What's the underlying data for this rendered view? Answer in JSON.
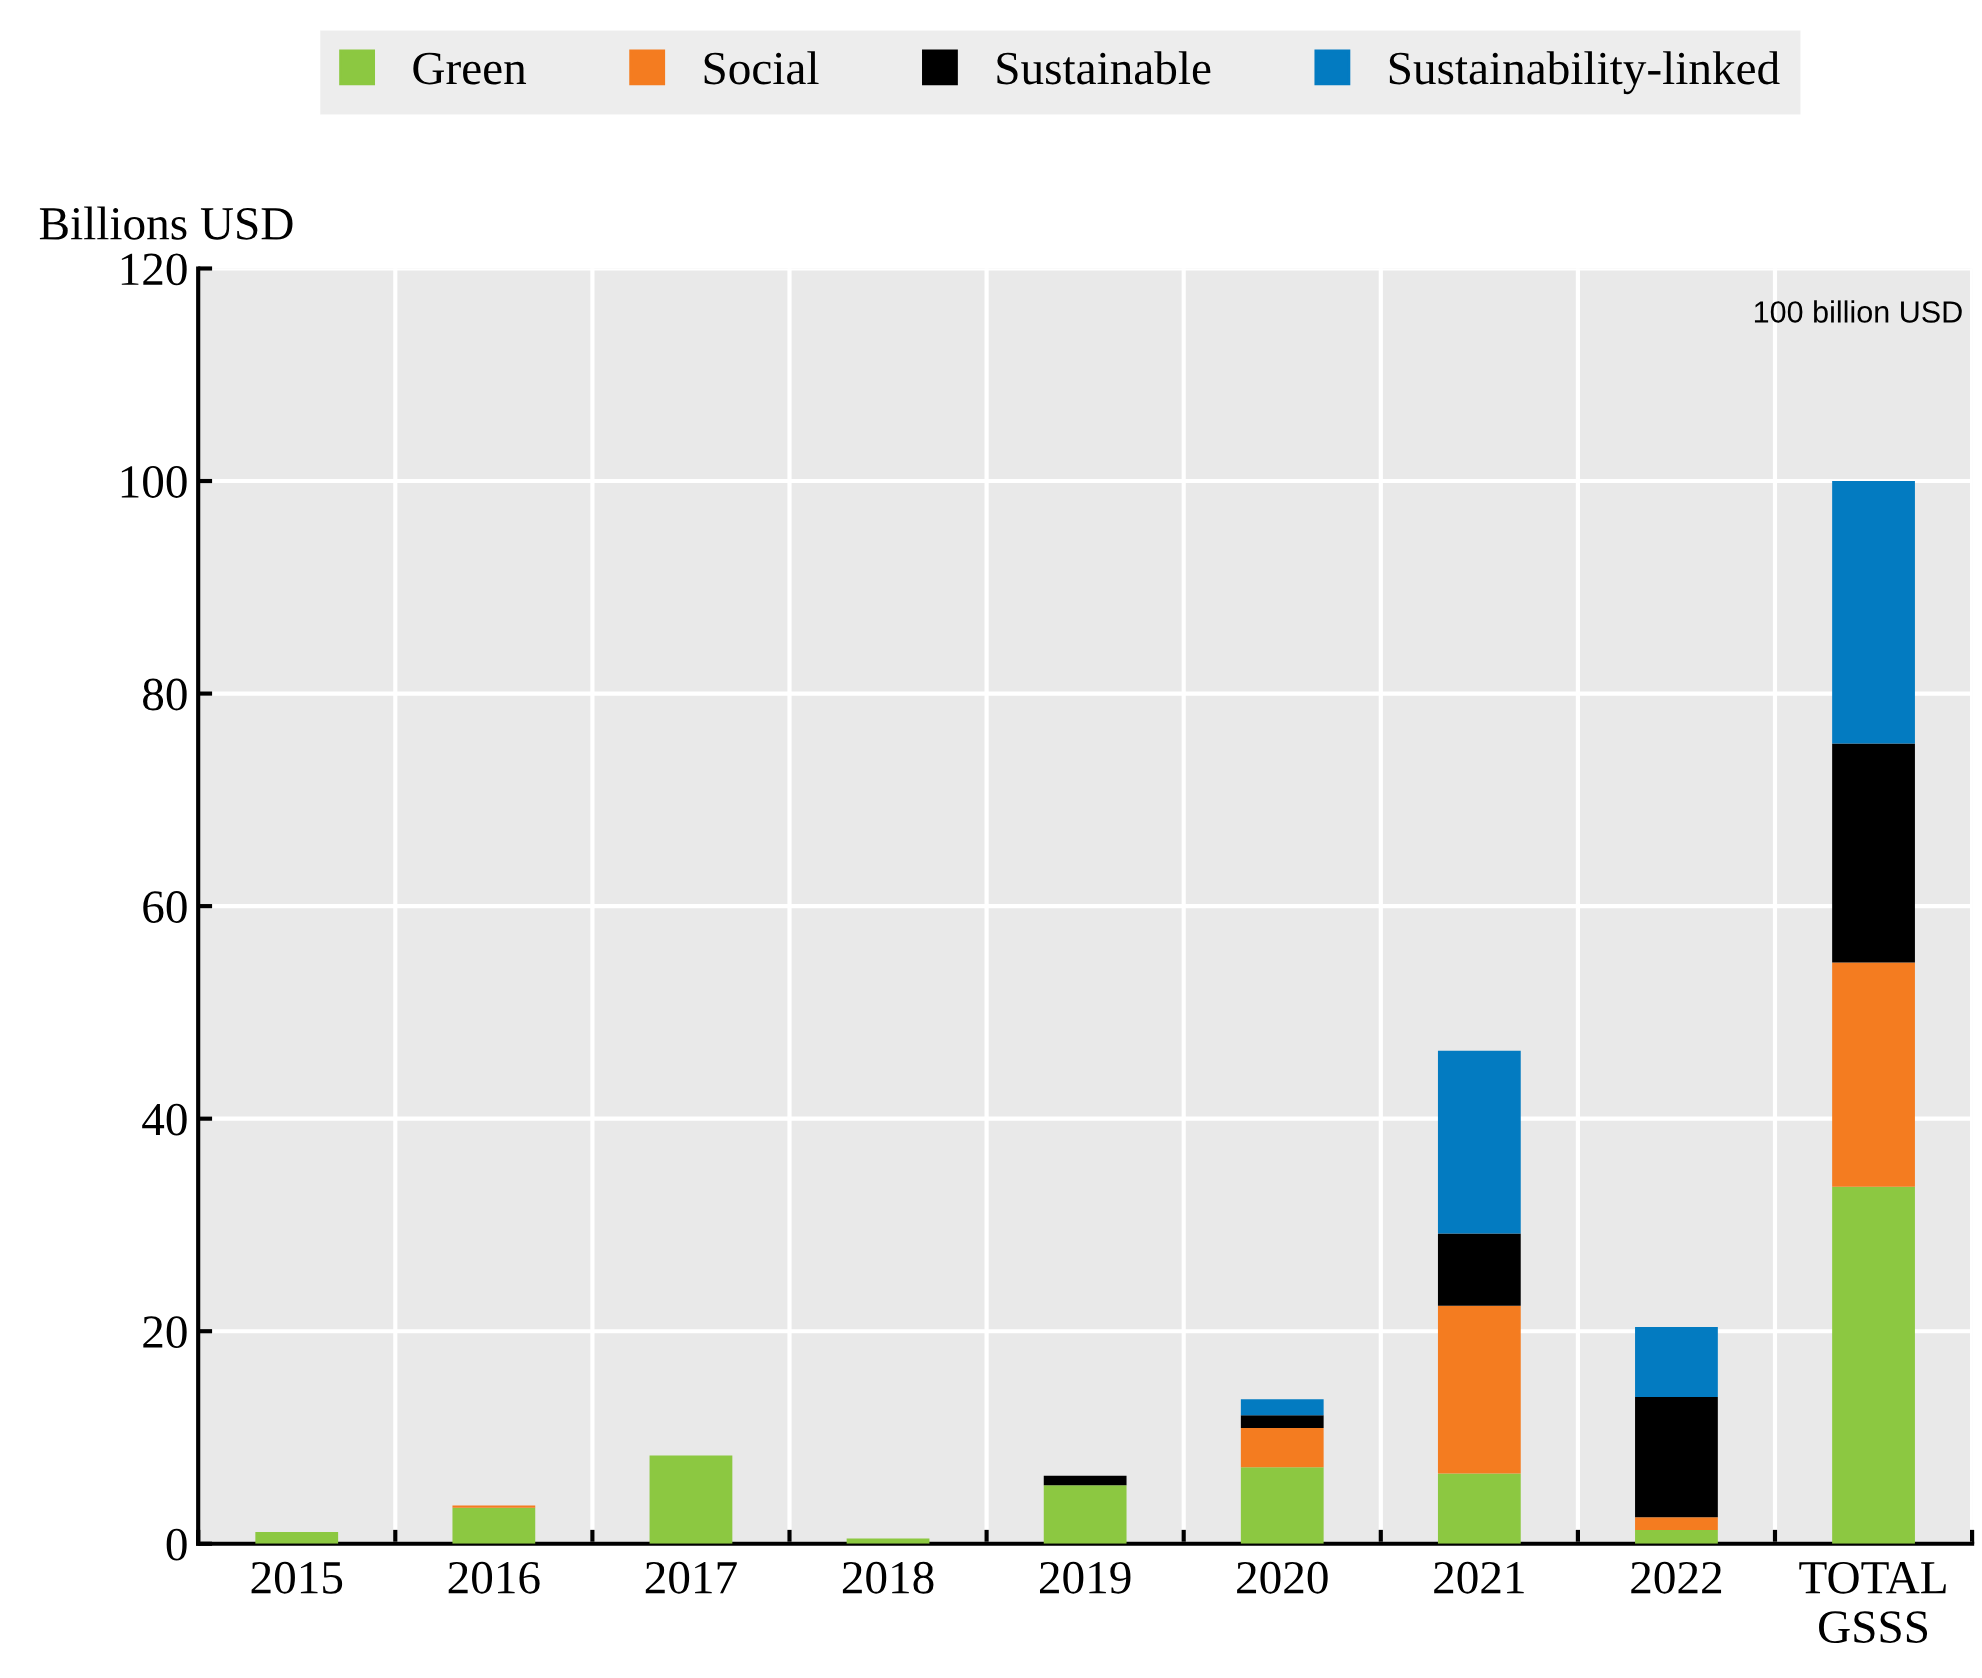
{
  "chart_data": {
    "type": "bar",
    "stacked": true,
    "ylabel": "Billions USD",
    "categories": [
      "2015",
      "2016",
      "2017",
      "2018",
      "2019",
      "2020",
      "2021",
      "2022",
      "TOTAL\nGSSS"
    ],
    "series": [
      {
        "name": "Green",
        "color": "#8cc841",
        "values": [
          1.1,
          3.4,
          8.3,
          0.5,
          5.5,
          7.2,
          6.6,
          1.3,
          33.6
        ]
      },
      {
        "name": "Social",
        "color": "#f47c20",
        "values": [
          0,
          0.2,
          0,
          0,
          0,
          3.7,
          15.8,
          1.2,
          21.1
        ]
      },
      {
        "name": "Sustainable",
        "color": "#000000",
        "values": [
          0,
          0,
          0,
          0,
          0.9,
          1.2,
          6.8,
          11.3,
          20.6
        ]
      },
      {
        "name": "Sustainability-linked",
        "color": "#037bc1",
        "values": [
          0,
          0,
          0,
          0,
          0,
          1.5,
          17.2,
          6.6,
          24.7
        ]
      }
    ],
    "ylim": [
      0,
      120
    ],
    "yticks": [
      0,
      20,
      40,
      60,
      80,
      100,
      120
    ],
    "grid": true,
    "legend": "top",
    "annotations": [
      "100 billion USD"
    ]
  }
}
